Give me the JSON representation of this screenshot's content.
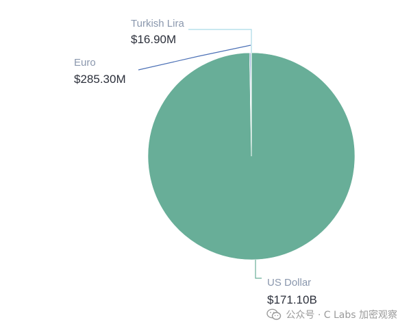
{
  "chart_data": {
    "type": "pie",
    "title": "",
    "slices": [
      {
        "name": "US Dollar",
        "value": 171100,
        "display": "$171.10B",
        "color": "#68ae98"
      },
      {
        "name": "Euro",
        "value": 285.3,
        "display": "$285.30M",
        "color": "#4a6fb5"
      },
      {
        "name": "Turkish Lira",
        "value": 16.9,
        "display": "$16.90M",
        "color": "#a9d9e6"
      }
    ],
    "value_unit": "USD millions",
    "legend": "none",
    "label_placement": "outside with leader lines"
  },
  "watermark": {
    "text": "公众号 · C Labs 加密观察",
    "icon": "wechat-icon"
  }
}
